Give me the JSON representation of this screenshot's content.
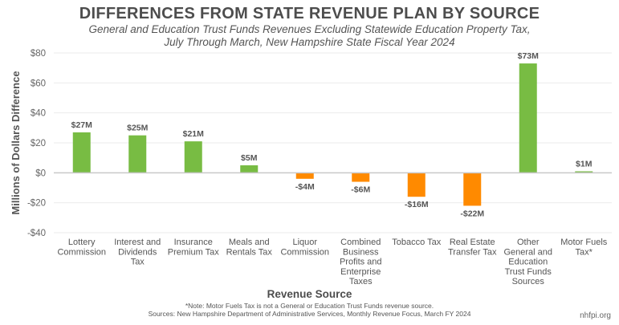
{
  "chart_data": {
    "type": "bar",
    "title": "DIFFERENCES FROM STATE REVENUE PLAN BY SOURCE",
    "subtitle_lines": [
      "General and Education Trust Funds Revenues Excluding Statewide Education Property Tax,",
      "July Through March, New Hampshire State Fiscal Year 2024"
    ],
    "xlabel": "Revenue Source",
    "ylabel": "Millions of Dollars Difference",
    "ylim": [
      -40,
      80
    ],
    "yticks": [
      80,
      60,
      40,
      20,
      0,
      -20,
      -40
    ],
    "ytick_labels": [
      "$80",
      "$60",
      "$40",
      "$20",
      "$0",
      "-$20",
      "-$40"
    ],
    "grid": true,
    "categories": [
      [
        "Lottery",
        "Commission"
      ],
      [
        "Interest and",
        "Dividends",
        "Tax"
      ],
      [
        "Insurance",
        "Premium Tax"
      ],
      [
        "Meals and",
        "Rentals Tax"
      ],
      [
        "Liquor",
        "Commission"
      ],
      [
        "Combined",
        "Business",
        "Profits and",
        "Enterprise",
        "Taxes"
      ],
      [
        "Tobacco Tax"
      ],
      [
        "Real Estate",
        "Transfer Tax"
      ],
      [
        "Other",
        "General and",
        "Education",
        "Trust Funds",
        "Sources"
      ],
      [
        "Motor Fuels",
        "Tax*"
      ]
    ],
    "values": [
      27,
      25,
      21,
      5,
      -4,
      -6,
      -16,
      -22,
      73,
      1
    ],
    "data_labels": [
      "$27M",
      "$25M",
      "$21M",
      "$5M",
      "-$4M",
      "-$6M",
      "-$16M",
      "-$22M",
      "$73M",
      "$1M"
    ],
    "colors": {
      "positive": "#78bc43",
      "negative": "#ff8a00",
      "grid": "#ebebeb",
      "zero_line": "#c8c8c8"
    }
  },
  "footer": {
    "note": "*Note: Motor Fuels Tax is not a General or Education Trust Funds revenue source.",
    "sources": "Sources: New Hampshire Department of Administrative Services, Monthly Revenue Focus, March FY 2024",
    "brand": "nhfpi.org"
  }
}
